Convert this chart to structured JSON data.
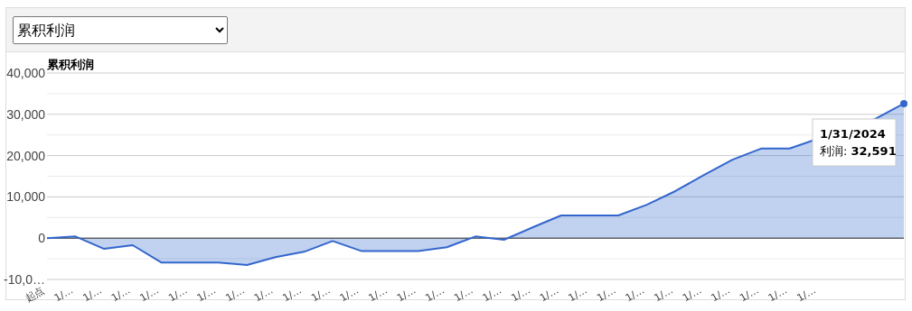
{
  "chart_data": {
    "type": "area",
    "title": "累积利润",
    "color": "#3366cc",
    "categories": [
      "起点",
      "1/…",
      "1/…",
      "1/…",
      "1/…",
      "1/…",
      "1/…",
      "1/…",
      "1/…",
      "1/…",
      "1/…",
      "1/…",
      "1/…",
      "1/…",
      "1/…",
      "1/…",
      "1/…",
      "1/…",
      "1/…",
      "1/…",
      "1/…",
      "1/…",
      "1/…",
      "1/…",
      "1/…",
      "1/…",
      "1/…",
      "1/…",
      null,
      null,
      null
    ],
    "values": [
      0,
      400,
      -2600,
      -1700,
      -5900,
      -5900,
      -5900,
      -6500,
      -4600,
      -3300,
      -700,
      -3100,
      -3100,
      -3100,
      -2200,
      400,
      -400,
      2600,
      5500,
      5500,
      5500,
      8100,
      11400,
      15300,
      19000,
      21700,
      21700,
      null,
      null,
      28900,
      32591
    ],
    "ylim": [
      -10000,
      40000
    ],
    "yticks": [
      {
        "value": -10000,
        "label": "-10,0…"
      },
      {
        "value": -5000,
        "label": null
      },
      0,
      {
        "value": 5000,
        "label": null
      },
      {
        "value": 10000,
        "label": "10,000"
      },
      {
        "value": 15000,
        "label": null
      },
      {
        "value": 20000,
        "label": "20,000"
      },
      {
        "value": 25000,
        "label": null
      },
      {
        "value": 30000,
        "label": "30,000"
      },
      {
        "value": 35000,
        "label": null
      },
      {
        "value": 40000,
        "label": "40,000"
      }
    ],
    "grid": "y",
    "annotations": [
      "累积利润",
      "**1/31/2024**",
      "利润: **32,591**"
    ]
  }
}
